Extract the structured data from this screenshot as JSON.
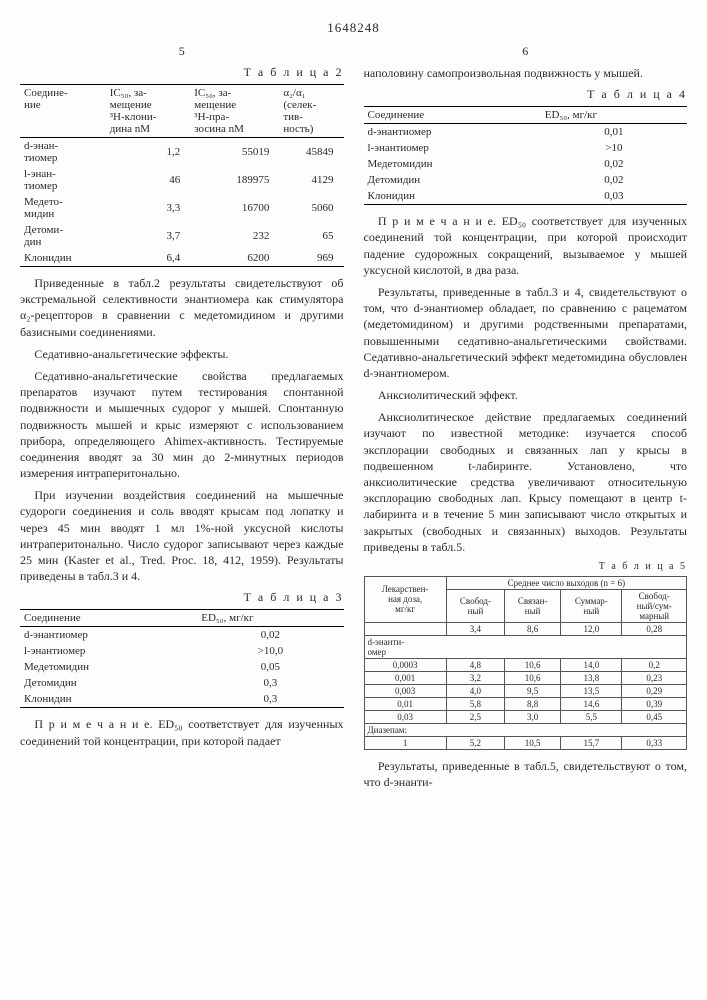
{
  "docnum": "1648248",
  "left": {
    "pagenum": "5",
    "t2": {
      "title": "Т а б л и ц а  2",
      "cols": [
        "Соедине-\nние",
        "IC₅₀, за-\nмещение\n³H-клони-\nдина nM",
        "IC₅₀, за-\nмещение\n³H-пра-\nзосина nM",
        "α₂/α₁\n(селек-\nтив-\nность)"
      ],
      "rows": [
        [
          "d-энан-\nтиомер",
          "1,2",
          "55019",
          "45849"
        ],
        [
          "l-энан-\nтиомер",
          "46",
          "189975",
          "4129"
        ],
        [
          "Медето-\nмидин",
          "3,3",
          "16700",
          "5060"
        ],
        [
          "Детоми-\nдин",
          "3,7",
          "232",
          "65"
        ],
        [
          "Клонидин",
          "6,4",
          "6200",
          "969"
        ]
      ]
    },
    "para1": "Приведенные в табл.2 результаты свидетельствуют об экстремальной селективности энантиомера как стимулятора α₂-рецепторов в сравнении с медетомидином и другими базисными соединениями.",
    "para2h": "Седативно-анальгетические эффекты.",
    "para2": "Седативно-анальгетические свойства предлагаемых препаратов изучают путем тестирования спонтанной подвижности и мышечных судорог у мышей. Спонтанную подвижность мышей и крыс измеряют с использованием прибора, определяющего Ahimex-активность. Тестируемые соединения вводят за 30 мин до 2-минутных периодов измерения интраперитонально.",
    "para3": "При изучении воздействия соединений на мышечные судороги соединения и соль вводят крысам под лопатку и через 45 мин вводят 1 мл 1%-ной уксусной кислоты интраперитонально. Число судорог записывают через каждые 25 мин (Kaster et al., Tred. Proc. 18, 412, 1959). Результаты приведены в табл.3 и 4.",
    "t3": {
      "title": "Т а б л и ц а  3",
      "cols": [
        "Соединение",
        "ED₅₀, мг/кг"
      ],
      "rows": [
        [
          "d-энантиомер",
          "0,02"
        ],
        [
          "l-энантиомер",
          ">10,0"
        ],
        [
          "Медетомидин",
          "0,05"
        ],
        [
          "Детомидин",
          "0,3"
        ],
        [
          "Клонидин",
          "0,3"
        ]
      ]
    },
    "para4": "П р и м е ч а н и е. ED₅₀ соответствует для изученных соединений той концентрации, при которой падает"
  },
  "right": {
    "pagenum": "6",
    "para0": "наполовину самопроизвольная подвижность у мышей.",
    "t4": {
      "title": "Т а б л и ц а  4",
      "cols": [
        "Соединение",
        "ED₅₀, мг/кг"
      ],
      "rows": [
        [
          "d-энантиомер",
          "0,01"
        ],
        [
          "l-энантиомер",
          ">10"
        ],
        [
          "Медетомидин",
          "0,02"
        ],
        [
          "Детомидин",
          "0,02"
        ],
        [
          "Клонидин",
          "0,03"
        ]
      ]
    },
    "para1": "П р и м е ч а н и е. ED₅₀ соответствует для изученных соединений той концентрации, при которой происходит падение судорожных сокращений, вызываемое у мышей уксусной кислотой, в два раза.",
    "para2": "Результаты, приведенные в табл.3 и 4, свидетельствуют о том, что d-энантиомер обладает, по сравнению с рацематом (медетомидином) и другими родственными препаратами, повышенными седативно-анальгетическими свойствами. Седативно-анальгетический эффект медетомидина обусловлен d-энантиомером.",
    "para3h": "Анксиолитический эффект.",
    "para3": "Анксиолитическое действие предлагаемых соединений изучают по известной методике: изучается способ эксплорации свободных и связанных лап у крысы в подвешенном t-лабиринте. Установлено, что анксиолитические средства увеличивают относительную эксплорацию свободных лап. Крысу помещают в центр t-лабиринта и в течение 5 мин записывают число открытых и закрытых (свободных и связанных) выходов. Результаты приведены в табл.5.",
    "t5": {
      "title": "Т а б л и ц а  5",
      "h1": "Лекарствен-\nная доза,\nмг/кг",
      "h2": "Среднее число выходов (n = 6)",
      "sub": [
        "Свобод-\nный",
        "Связан-\nный",
        "Суммар-\nный",
        "Свобод-\nный/сум-\nмарный"
      ],
      "base": [
        "",
        "3,4",
        "8,6",
        "12,0",
        "0,28"
      ],
      "g1": "d-энанти-\nомер",
      "rows1": [
        [
          "0,0003",
          "4,8",
          "10,6",
          "14,0",
          "0,2"
        ],
        [
          "0,001",
          "3,2",
          "10,6",
          "13,8",
          "0,23"
        ],
        [
          "0,003",
          "4,0",
          "9,5",
          "13,5",
          "0,29"
        ],
        [
          "0,01",
          "5,8",
          "8,8",
          "14,6",
          "0,39"
        ],
        [
          "0,03",
          "2,5",
          "3,0",
          "5,5",
          "0,45"
        ]
      ],
      "g2": "Диазепам:",
      "rows2": [
        [
          "1",
          "5,2",
          "10,5",
          "15,7",
          "0,33"
        ]
      ]
    },
    "para4": "Результаты, приведенные в табл.5, свидетельствуют о том, что d-энанти-"
  }
}
